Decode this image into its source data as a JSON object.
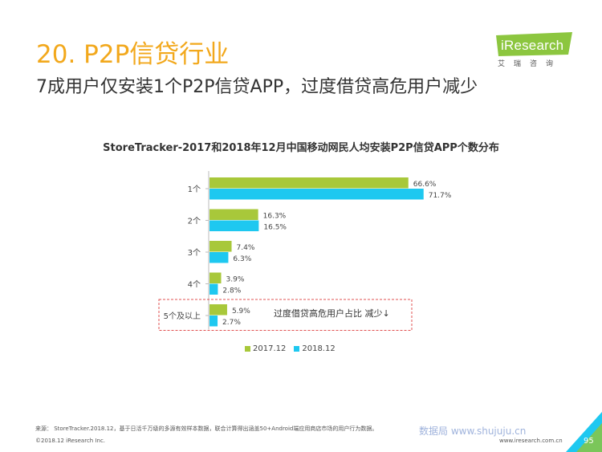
{
  "header": {
    "title": "20. P2P信贷行业",
    "subtitle": "7成用户仅安装1个P2P信贷APP，过度借贷高危用户减少"
  },
  "logo": {
    "word": "iResearch",
    "cn": "艾瑞咨询"
  },
  "chart_data": {
    "type": "bar",
    "orientation": "horizontal",
    "title": "StoreTracker-2017和2018年12月中国移动网民人均安装P2P信贷APP个数分布",
    "categories": [
      "1个",
      "2个",
      "3个",
      "4个",
      "5个及以上"
    ],
    "series": [
      {
        "name": "2017.12",
        "values": [
          66.6,
          16.3,
          7.4,
          3.9,
          5.9
        ],
        "labels": [
          "66.6%",
          "16.3%",
          "7.4%",
          "3.9%",
          "5.9%"
        ],
        "color": "#a8c83a"
      },
      {
        "name": "2018.12",
        "values": [
          71.7,
          16.5,
          6.3,
          2.8,
          2.7
        ],
        "labels": [
          "71.7%",
          "16.5%",
          "6.3%",
          "2.8%",
          "2.7%"
        ],
        "color": "#1ec8f0"
      }
    ],
    "xlim": [
      0,
      100
    ],
    "grid": false,
    "legend": "bottom",
    "annotation": "过度借贷高危用户占比 减少↓"
  },
  "footer": {
    "source": "来源： StoreTracker.2018.12，基于日活千万级的多源有效样本数据，联合计算得出涵盖50+Android端应用商店市场的用户行为数据。",
    "copyright": "©2018.12 iResearch Inc.",
    "website": "www.iresearch.com.cn",
    "watermark": "数据局 www.shujuju.cn",
    "page": "95"
  },
  "colors": {
    "accent": "#f2a81c",
    "logo_green": "#8cc63f",
    "corner_blue": "#1ec8f0",
    "annotation_red": "#e05050"
  }
}
